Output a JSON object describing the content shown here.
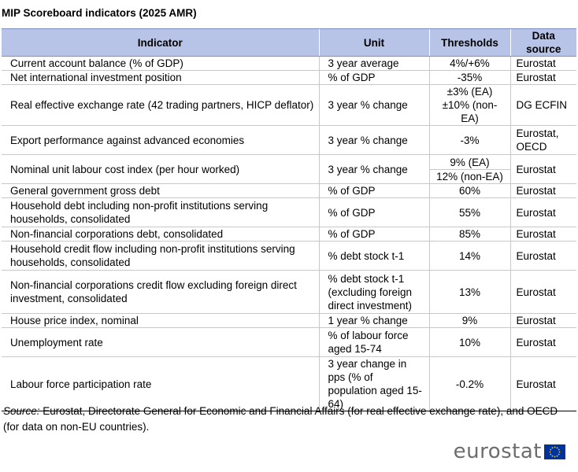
{
  "title": "MIP Scoreboard indicators (2025 AMR)",
  "headers": [
    "Indicator",
    "Unit",
    "Thresholds",
    "Data source"
  ],
  "rows": [
    {
      "indicator": "Current account balance (% of GDP)",
      "unit": "3 year average",
      "threshold": "4%/+6%",
      "source": "Eurostat"
    },
    {
      "indicator": "Net international investment position",
      "unit": "% of GDP",
      "threshold": "-35%",
      "source": "Eurostat"
    },
    {
      "indicator": "Real effective exchange rate (42 trading partners, HICP deflator)",
      "unit": "3 year % change",
      "threshold_a": "±3% (EA)",
      "threshold_b": "±10% (non-EA)",
      "source": "DG ECFIN"
    },
    {
      "indicator": "Export performance against advanced economies",
      "unit": "3 year % change",
      "threshold": "-3%",
      "source_a": "Eurostat,",
      "source_b": "OECD"
    },
    {
      "indicator": "Nominal unit labour cost index (per hour worked)",
      "unit": "3 year % change",
      "threshold_a": "9% (EA)",
      "threshold_b": "12% (non-EA)",
      "source": "Eurostat"
    },
    {
      "indicator": "General government gross debt",
      "unit": "% of GDP",
      "threshold": "60%",
      "source": "Eurostat"
    },
    {
      "indicator": "Household debt including non-profit institutions serving households, consolidated",
      "unit": "% of GDP",
      "threshold": "55%",
      "source": "Eurostat"
    },
    {
      "indicator": "Non-financial corporations debt, consolidated",
      "unit": "% of GDP",
      "threshold": "85%",
      "source": "Eurostat"
    },
    {
      "indicator": "Household credit flow including non-profit institutions serving households, consolidated",
      "unit": "% debt stock t-1",
      "threshold": "14%",
      "source": "Eurostat"
    },
    {
      "indicator": "Non-financial corporations credit flow excluding foreign direct investment, consolidated",
      "unit": "% debt stock t-1 (excluding foreign direct investment)",
      "threshold": "13%",
      "source": "Eurostat"
    },
    {
      "indicator": "House price index, nominal",
      "unit": "1 year % change",
      "threshold": "9%",
      "source": "Eurostat"
    },
    {
      "indicator": "Unemployment rate",
      "unit": "% of labour force aged 15-74",
      "threshold": "10%",
      "source": "Eurostat"
    },
    {
      "indicator": "Labour force participation rate",
      "unit": "3 year change in pps (% of population aged 15-64)",
      "threshold": "-0.2%",
      "source": "Eurostat"
    }
  ],
  "source_note": {
    "label": "Source:",
    "text": " Eurostat, Directorate General for Economic and Financial Affairs (for real effective exchange rate), and OECD (for data on non-EU countries)."
  },
  "logo": {
    "text": "eurostat",
    "icon": "eu-flag-icon",
    "colors": {
      "flag": "#003399",
      "stars": "#ffcc00",
      "header": "#b7c4e8"
    }
  }
}
